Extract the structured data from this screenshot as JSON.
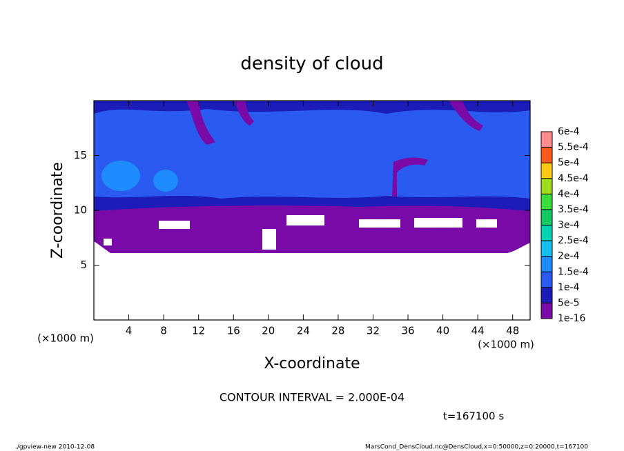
{
  "chart_data": {
    "type": "contour",
    "title": "density of cloud",
    "x_label": "X-coordinate",
    "y_label": "Z-coordinate",
    "x_unit": "(×1000 m)",
    "y_unit": "(×1000 m)",
    "xlim": [
      0,
      50
    ],
    "xticks": [
      4,
      8,
      12,
      16,
      20,
      24,
      28,
      32,
      36,
      40,
      44,
      48
    ],
    "ylim": [
      0,
      20
    ],
    "yticks": [
      5,
      10,
      15
    ],
    "annotation": "CONTOUR INTERVAL = 2.000E-04",
    "time_label": "t=167100 s",
    "footer_left": "./gpview-new   2010-12-08",
    "footer_right": "MarsCond_DensCloud.nc@DensCloud,x=0:50000,z=0:20000,t=167100",
    "colorbar": {
      "levels": [
        1e-16,
        {
          "value": 5e-05,
          "label": "5e-5"
        },
        {
          "value": 0.0001,
          "label": "1e-4"
        },
        {
          "value": 0.00015,
          "label": "1.5e-4"
        },
        {
          "value": 0.0002,
          "label": "2e-4"
        },
        {
          "value": 0.00025,
          "label": "2.5e-4"
        },
        {
          "value": 0.0003,
          "label": "3e-4"
        },
        {
          "value": 0.00035,
          "label": "3.5e-4"
        },
        {
          "value": 0.0004,
          "label": "4e-4"
        },
        {
          "value": 0.00045,
          "label": "4.5e-4"
        },
        {
          "value": 0.0005,
          "label": "5e-4"
        },
        {
          "value": 0.00055,
          "label": "5.5e-4"
        },
        {
          "value": 0.0006,
          "label": "6e-4"
        }
      ],
      "colors": [
        "#7a0aa8",
        "#1c1cb8",
        "#2a5af0",
        "#1e8cff",
        "#14c0f0",
        "#00d4b4",
        "#14c864",
        "#3cdc3c",
        "#a0dc1e",
        "#ffc814",
        "#ff5a1e",
        "#ff8c8c"
      ]
    }
  }
}
